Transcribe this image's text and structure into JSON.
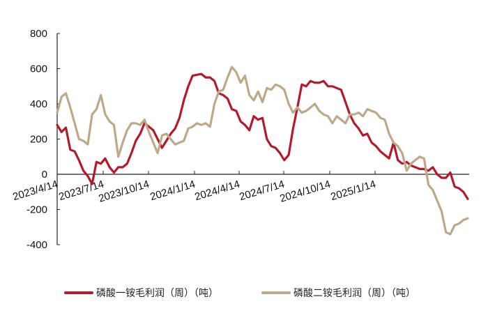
{
  "chart_data": {
    "type": "line",
    "title": "",
    "xlabel": "",
    "ylabel": "",
    "ylim": [
      -400,
      800
    ],
    "yticks": [
      -400,
      -200,
      0,
      200,
      400,
      600,
      800
    ],
    "xticks": [
      "2023/4/14",
      "2023/7/14",
      "2023/10/14",
      "2024/1/14",
      "2024/4/14",
      "2024/7/14",
      "2024/10/14",
      "2025/1/14"
    ],
    "grid": false,
    "legend_position": "bottom",
    "series": [
      {
        "name": "磷酸一铵毛利润（周）（吨）",
        "color": "#B5192B",
        "points": [
          [
            "2023/4/14",
            280
          ],
          [
            "",
            240
          ],
          [
            "",
            265
          ],
          [
            "",
            140
          ],
          [
            "",
            130
          ],
          [
            "",
            80
          ],
          [
            "",
            20
          ],
          [
            "",
            -10
          ],
          [
            "2023/7/14",
            -55
          ],
          [
            "",
            70
          ],
          [
            "",
            60
          ],
          [
            "",
            90
          ],
          [
            "",
            40
          ],
          [
            "",
            10
          ],
          [
            "",
            40
          ],
          [
            "",
            40
          ],
          [
            "",
            60
          ],
          [
            "",
            120
          ],
          [
            "",
            190
          ],
          [
            "",
            230
          ],
          [
            "",
            290
          ],
          [
            "",
            270
          ],
          [
            "",
            250
          ],
          [
            "",
            200
          ],
          [
            "2023/10/14",
            150
          ],
          [
            "",
            190
          ],
          [
            "",
            230
          ],
          [
            "",
            260
          ],
          [
            "",
            320
          ],
          [
            "",
            420
          ],
          [
            "",
            500
          ],
          [
            "",
            560
          ],
          [
            "",
            565
          ],
          [
            "2024/1/14",
            570
          ],
          [
            "",
            550
          ],
          [
            "",
            550
          ],
          [
            "",
            530
          ],
          [
            "",
            460
          ],
          [
            "",
            450
          ],
          [
            "",
            430
          ],
          [
            "",
            370
          ],
          [
            "",
            360
          ],
          [
            "",
            300
          ],
          [
            "",
            280
          ],
          [
            "",
            250
          ],
          [
            "",
            330
          ],
          [
            "2024/4/14",
            310
          ],
          [
            "",
            320
          ],
          [
            "",
            200
          ],
          [
            "",
            160
          ],
          [
            "",
            150
          ],
          [
            "",
            120
          ],
          [
            "",
            80
          ],
          [
            "",
            110
          ],
          [
            "",
            260
          ],
          [
            "",
            380
          ],
          [
            "",
            510
          ],
          [
            "",
            500
          ],
          [
            "",
            530
          ],
          [
            "2024/7/14",
            520
          ],
          [
            "",
            520
          ],
          [
            "",
            530
          ],
          [
            "",
            500
          ],
          [
            "",
            500
          ],
          [
            "",
            490
          ],
          [
            "",
            480
          ],
          [
            "",
            410
          ],
          [
            "",
            340
          ],
          [
            "",
            290
          ],
          [
            "",
            260
          ],
          [
            "",
            220
          ],
          [
            "",
            230
          ],
          [
            "2024/10/14",
            180
          ],
          [
            "",
            160
          ],
          [
            "",
            130
          ],
          [
            "",
            110
          ],
          [
            "",
            90
          ],
          [
            "",
            180
          ],
          [
            "",
            80
          ],
          [
            "",
            60
          ],
          [
            "",
            70
          ],
          [
            "",
            50
          ],
          [
            "",
            40
          ],
          [
            "",
            30
          ],
          [
            "2025/1/14",
            30
          ],
          [
            "",
            20
          ],
          [
            "",
            40
          ],
          [
            "",
            0
          ],
          [
            "",
            -20
          ],
          [
            "",
            -20
          ],
          [
            "",
            10
          ],
          [
            "",
            -70
          ],
          [
            "",
            -80
          ],
          [
            "",
            -100
          ],
          [
            "",
            -140
          ]
        ]
      },
      {
        "name": "磷酸二铵毛利润（周）（吨）",
        "color": "#BFA888",
        "points": [
          [
            "2023/4/14",
            350
          ],
          [
            "",
            440
          ],
          [
            "",
            460
          ],
          [
            "",
            380
          ],
          [
            "",
            290
          ],
          [
            "",
            200
          ],
          [
            "",
            190
          ],
          [
            "",
            170
          ],
          [
            "2023/7/14",
            340
          ],
          [
            "",
            370
          ],
          [
            "",
            450
          ],
          [
            "",
            340
          ],
          [
            "",
            300
          ],
          [
            "",
            280
          ],
          [
            "",
            100
          ],
          [
            "",
            180
          ],
          [
            "",
            250
          ],
          [
            "",
            290
          ],
          [
            "",
            290
          ],
          [
            "",
            280
          ],
          [
            "",
            310
          ],
          [
            "",
            240
          ],
          [
            "",
            180
          ],
          [
            "",
            120
          ],
          [
            "2023/10/14",
            220
          ],
          [
            "",
            230
          ],
          [
            "",
            200
          ],
          [
            "",
            170
          ],
          [
            "",
            180
          ],
          [
            "",
            190
          ],
          [
            "",
            260
          ],
          [
            "",
            270
          ],
          [
            "",
            290
          ],
          [
            "2024/1/14",
            280
          ],
          [
            "",
            290
          ],
          [
            "",
            270
          ],
          [
            "",
            400
          ],
          [
            "",
            470
          ],
          [
            "",
            480
          ],
          [
            "",
            550
          ],
          [
            "",
            610
          ],
          [
            "",
            580
          ],
          [
            "",
            520
          ],
          [
            "",
            560
          ],
          [
            "",
            450
          ],
          [
            "",
            420
          ],
          [
            "2024/4/14",
            470
          ],
          [
            "",
            410
          ],
          [
            "",
            490
          ],
          [
            "",
            480
          ],
          [
            "",
            510
          ],
          [
            "",
            500
          ],
          [
            "",
            480
          ],
          [
            "",
            400
          ],
          [
            "",
            350
          ],
          [
            "",
            380
          ],
          [
            "",
            350
          ],
          [
            "",
            360
          ],
          [
            "",
            380
          ],
          [
            "2024/7/14",
            400
          ],
          [
            "",
            360
          ],
          [
            "",
            340
          ],
          [
            "",
            330
          ],
          [
            "",
            290
          ],
          [
            "",
            330
          ],
          [
            "",
            310
          ],
          [
            "",
            290
          ],
          [
            "",
            340
          ],
          [
            "",
            340
          ],
          [
            "",
            350
          ],
          [
            "",
            330
          ],
          [
            "",
            370
          ],
          [
            "2024/10/14",
            360
          ],
          [
            "",
            350
          ],
          [
            "",
            320
          ],
          [
            "",
            310
          ],
          [
            "",
            230
          ],
          [
            "",
            180
          ],
          [
            "",
            160
          ],
          [
            "",
            120
          ],
          [
            "",
            20
          ],
          [
            "",
            60
          ],
          [
            "",
            80
          ],
          [
            "",
            100
          ],
          [
            "2025/1/14",
            90
          ],
          [
            "",
            -60
          ],
          [
            "",
            -90
          ],
          [
            "",
            -150
          ],
          [
            "",
            -210
          ],
          [
            "",
            -330
          ],
          [
            "",
            -340
          ],
          [
            "",
            -290
          ],
          [
            "",
            -280
          ],
          [
            "",
            -260
          ],
          [
            "",
            -250
          ]
        ]
      }
    ]
  },
  "legend": {
    "items": [
      {
        "label": "磷酸一铵毛利润（周）（吨）",
        "color": "#B5192B"
      },
      {
        "label": "磷酸二铵毛利润（周）（吨）",
        "color": "#BFA888"
      }
    ]
  }
}
